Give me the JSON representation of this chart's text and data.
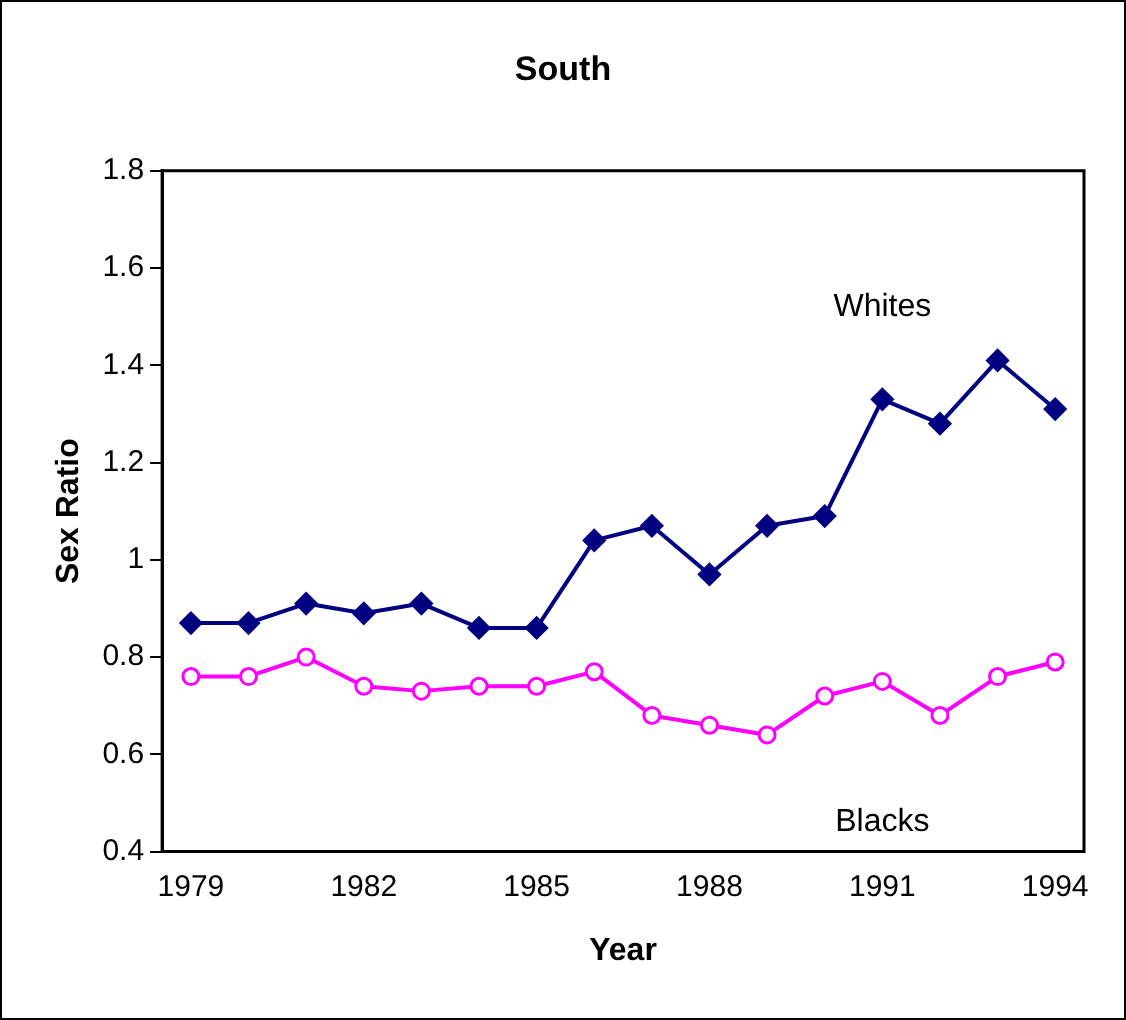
{
  "chart_data": {
    "type": "line",
    "title": "South",
    "xlabel": "Year",
    "ylabel": "Sex Ratio",
    "categories": [
      "1979",
      null,
      null,
      "1982",
      null,
      null,
      "1985",
      null,
      null,
      "1988",
      null,
      null,
      "1991",
      null,
      null,
      "1994"
    ],
    "series": [
      {
        "name": "Whites",
        "color": "#000080",
        "marker": "diamond",
        "values": [
          0.87,
          0.87,
          0.91,
          0.89,
          0.91,
          0.86,
          0.86,
          1.04,
          1.07,
          0.97,
          1.07,
          1.09,
          1.33,
          1.28,
          1.41,
          1.31
        ]
      },
      {
        "name": "Blacks",
        "color": "#ff00ff",
        "marker": "circle",
        "values": [
          0.76,
          0.76,
          0.8,
          0.74,
          0.73,
          0.74,
          0.74,
          0.77,
          0.68,
          0.66,
          0.64,
          0.72,
          0.75,
          0.68,
          0.76,
          0.79
        ]
      }
    ],
    "ylim": [
      0.4,
      1.8
    ],
    "yticks": [
      0.4,
      0.6,
      0.8,
      1,
      1.2,
      1.4,
      1.6,
      1.8
    ],
    "grid": false,
    "legend": false,
    "line_style": "solid"
  }
}
